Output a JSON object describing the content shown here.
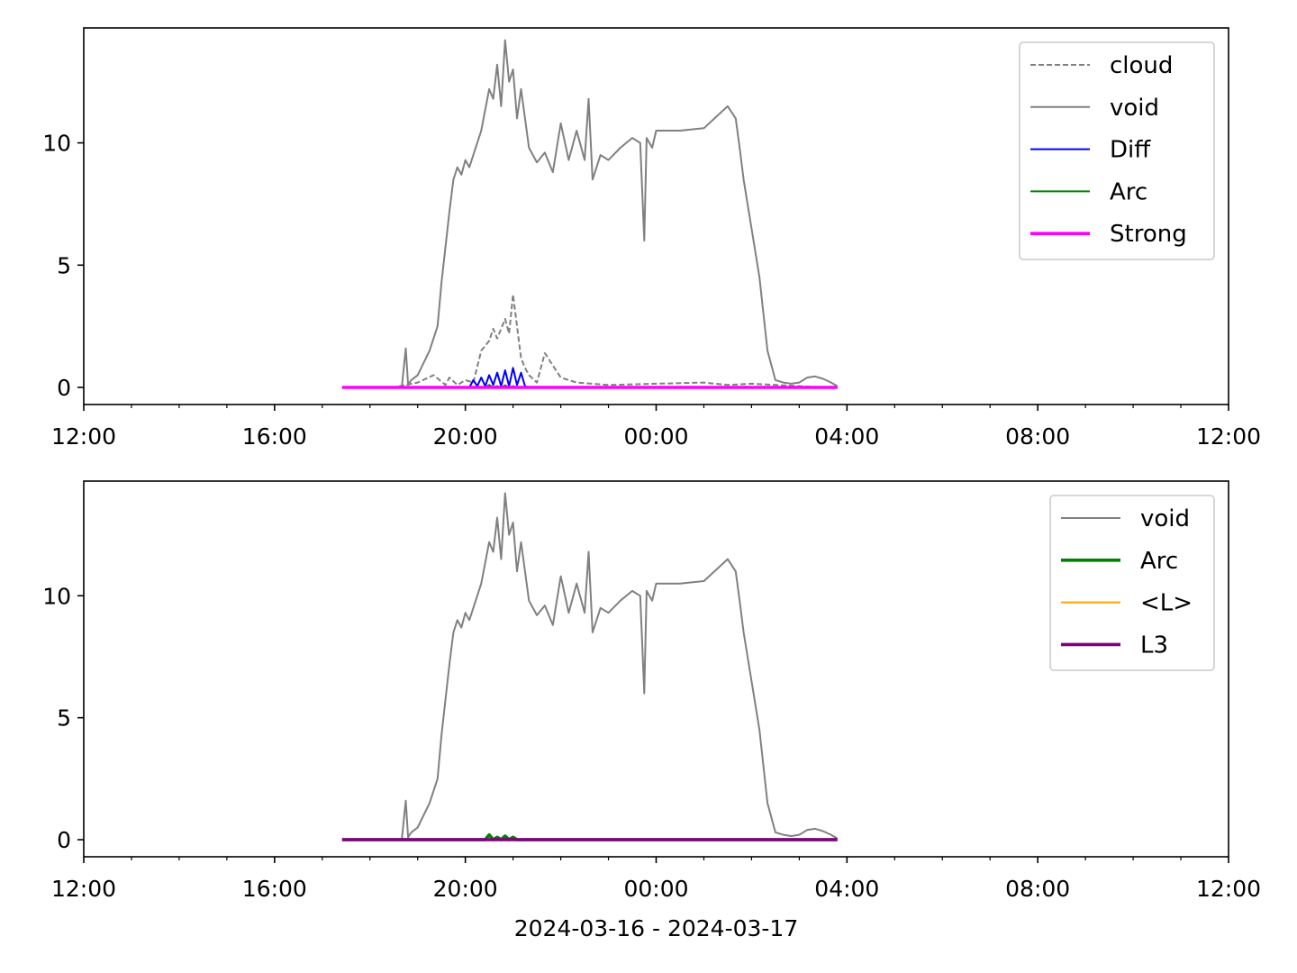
{
  "chart_data": [
    {
      "type": "line",
      "title": "",
      "xlabel": "",
      "ylabel": "",
      "xlim": [
        "2024-03-16 12:00",
        "2024-03-17 12:00"
      ],
      "ylim": [
        -0.7,
        14.7
      ],
      "yticks": [
        0,
        5,
        10
      ],
      "xtick_labels": [
        "12:00",
        "16:00",
        "20:00",
        "00:00",
        "04:00",
        "08:00",
        "12:00"
      ],
      "grid": false,
      "legend": "upper-right",
      "series": [
        {
          "name": "cloud",
          "color": "#808080",
          "style": "dashed",
          "x": [
            "17:25",
            "18:30",
            "19:00",
            "19:20",
            "19:35",
            "19:40",
            "19:50",
            "20:00",
            "20:10",
            "20:20",
            "20:30",
            "20:35",
            "20:40",
            "20:50",
            "20:55",
            "21:00",
            "21:05",
            "21:10",
            "21:15",
            "21:20",
            "21:30",
            "21:40",
            "21:50",
            "22:00",
            "22:20",
            "23:00",
            "00:00",
            "01:00",
            "01:30",
            "02:00",
            "02:30",
            "03:00",
            "03:30",
            "03:48"
          ],
          "y": [
            0.0,
            0.0,
            0.2,
            0.5,
            0.1,
            0.4,
            0.1,
            0.3,
            0.2,
            1.5,
            1.9,
            2.4,
            2.0,
            2.8,
            2.2,
            3.8,
            2.5,
            1.2,
            0.8,
            0.5,
            0.2,
            1.4,
            0.9,
            0.4,
            0.2,
            0.1,
            0.15,
            0.2,
            0.1,
            0.15,
            0.1,
            0.05,
            0.0,
            0.0
          ]
        },
        {
          "name": "void",
          "color": "#808080",
          "style": "solid",
          "x": [
            "17:25",
            "18:00",
            "18:40",
            "18:45",
            "18:48",
            "18:52",
            "19:00",
            "19:15",
            "19:25",
            "19:30",
            "19:40",
            "19:45",
            "19:50",
            "19:55",
            "20:00",
            "20:05",
            "20:10",
            "20:20",
            "20:30",
            "20:35",
            "20:40",
            "20:45",
            "20:50",
            "20:55",
            "21:00",
            "21:05",
            "21:10",
            "21:20",
            "21:30",
            "21:40",
            "21:50",
            "22:00",
            "22:10",
            "22:20",
            "22:30",
            "22:35",
            "22:40",
            "22:50",
            "23:00",
            "23:15",
            "23:30",
            "23:40",
            "23:45",
            "23:48",
            "23:55",
            "00:00",
            "00:30",
            "01:00",
            "01:30",
            "01:40",
            "01:45",
            "01:50",
            "02:00",
            "02:10",
            "02:20",
            "02:30",
            "02:40",
            "02:50",
            "03:00",
            "03:10",
            "03:20",
            "03:30",
            "03:40",
            "03:48"
          ],
          "y": [
            0.0,
            0.0,
            0.0,
            1.6,
            0.1,
            0.3,
            0.5,
            1.5,
            2.5,
            4.3,
            7.2,
            8.5,
            9.0,
            8.7,
            9.3,
            9.0,
            9.5,
            10.5,
            12.2,
            11.8,
            13.2,
            11.5,
            14.2,
            12.5,
            13.0,
            11.0,
            12.2,
            9.8,
            9.2,
            9.6,
            8.8,
            10.8,
            9.3,
            10.5,
            9.3,
            11.8,
            8.5,
            9.5,
            9.3,
            9.8,
            10.2,
            10.0,
            6.0,
            10.2,
            9.8,
            10.5,
            10.5,
            10.6,
            11.5,
            11.0,
            9.8,
            8.5,
            6.5,
            4.5,
            1.5,
            0.3,
            0.2,
            0.15,
            0.2,
            0.4,
            0.45,
            0.35,
            0.2,
            0.05
          ]
        },
        {
          "name": "Diff",
          "color": "#0000ff",
          "style": "solid",
          "x": [
            "17:25",
            "20:05",
            "20:10",
            "20:15",
            "20:20",
            "20:25",
            "20:30",
            "20:35",
            "20:40",
            "20:45",
            "20:50",
            "20:55",
            "21:00",
            "21:05",
            "21:10",
            "21:15",
            "21:20",
            "21:25",
            "23:00",
            "03:48"
          ],
          "y": [
            0.0,
            0.0,
            0.3,
            0.05,
            0.4,
            0.05,
            0.5,
            0.1,
            0.6,
            0.05,
            0.7,
            0.05,
            0.8,
            0.1,
            0.6,
            0.05,
            0.0,
            0.0,
            0.0,
            0.0
          ]
        },
        {
          "name": "Arc",
          "color": "#008000",
          "style": "solid",
          "x": [
            "17:25",
            "20:25",
            "20:30",
            "20:35",
            "20:40",
            "20:45",
            "20:50",
            "20:55",
            "21:00",
            "21:05",
            "21:10",
            "03:48"
          ],
          "y": [
            0.0,
            0.0,
            0.1,
            0.0,
            0.05,
            0.0,
            0.08,
            0.0,
            0.05,
            0.0,
            0.0,
            0.0
          ]
        },
        {
          "name": "Strong",
          "color": "#ff00ff",
          "style": "solid-thick",
          "x": [
            "17:25",
            "03:48"
          ],
          "y": [
            0.0,
            0.0
          ]
        }
      ]
    },
    {
      "type": "line",
      "title": "",
      "xlabel": "2024-03-16 - 2024-03-17",
      "ylabel": "",
      "xlim": [
        "2024-03-16 12:00",
        "2024-03-17 12:00"
      ],
      "ylim": [
        -0.7,
        14.7
      ],
      "yticks": [
        0,
        5,
        10
      ],
      "xtick_labels": [
        "12:00",
        "16:00",
        "20:00",
        "00:00",
        "04:00",
        "08:00",
        "12:00"
      ],
      "grid": false,
      "legend": "upper-right",
      "series": [
        {
          "name": "void",
          "color": "#808080",
          "style": "solid",
          "x": [
            "17:25",
            "18:00",
            "18:40",
            "18:45",
            "18:48",
            "18:52",
            "19:00",
            "19:15",
            "19:25",
            "19:30",
            "19:40",
            "19:45",
            "19:50",
            "19:55",
            "20:00",
            "20:05",
            "20:10",
            "20:20",
            "20:30",
            "20:35",
            "20:40",
            "20:45",
            "20:50",
            "20:55",
            "21:00",
            "21:05",
            "21:10",
            "21:20",
            "21:30",
            "21:40",
            "21:50",
            "22:00",
            "22:10",
            "22:20",
            "22:30",
            "22:35",
            "22:40",
            "22:50",
            "23:00",
            "23:15",
            "23:30",
            "23:40",
            "23:45",
            "23:48",
            "23:55",
            "00:00",
            "00:30",
            "01:00",
            "01:30",
            "01:40",
            "01:45",
            "01:50",
            "02:00",
            "02:10",
            "02:20",
            "02:30",
            "02:40",
            "02:50",
            "03:00",
            "03:10",
            "03:20",
            "03:30",
            "03:40",
            "03:48"
          ],
          "y": [
            0.0,
            0.0,
            0.0,
            1.6,
            0.1,
            0.3,
            0.5,
            1.5,
            2.5,
            4.3,
            7.2,
            8.5,
            9.0,
            8.7,
            9.3,
            9.0,
            9.5,
            10.5,
            12.2,
            11.8,
            13.2,
            11.5,
            14.2,
            12.5,
            13.0,
            11.0,
            12.2,
            9.8,
            9.2,
            9.6,
            8.8,
            10.8,
            9.3,
            10.5,
            9.3,
            11.8,
            8.5,
            9.5,
            9.3,
            9.8,
            10.2,
            10.0,
            6.0,
            10.2,
            9.8,
            10.5,
            10.5,
            10.6,
            11.5,
            11.0,
            9.8,
            8.5,
            6.5,
            4.5,
            1.5,
            0.3,
            0.2,
            0.15,
            0.2,
            0.4,
            0.45,
            0.35,
            0.2,
            0.05
          ]
        },
        {
          "name": "Arc",
          "color": "#008000",
          "style": "solid-thick",
          "x": [
            "17:25",
            "20:25",
            "20:30",
            "20:35",
            "20:40",
            "20:45",
            "20:50",
            "20:55",
            "21:00",
            "21:05",
            "21:10",
            "03:48"
          ],
          "y": [
            0.0,
            0.0,
            0.2,
            0.0,
            0.1,
            0.0,
            0.15,
            0.0,
            0.1,
            0.0,
            0.0,
            0.0
          ]
        },
        {
          "name": "<L>",
          "color": "#ffa500",
          "style": "solid",
          "x": [
            "17:25",
            "03:48"
          ],
          "y": [
            0.0,
            0.0
          ]
        },
        {
          "name": "L3",
          "color": "#800080",
          "style": "solid-thick",
          "x": [
            "17:25",
            "03:48"
          ],
          "y": [
            0.0,
            0.0
          ]
        }
      ]
    }
  ]
}
